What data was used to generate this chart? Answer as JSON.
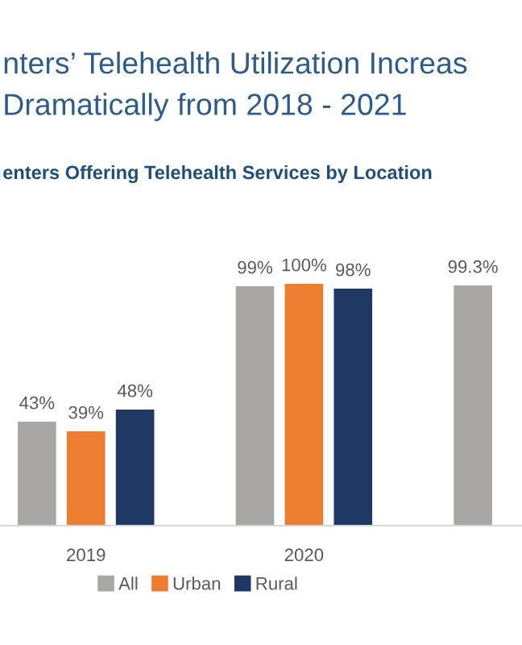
{
  "chart_data": {
    "type": "bar",
    "title": "nters’ Telehealth Utilization Increas\nDramatically from 2018 - 2021",
    "subtitle": "enters Offering Telehealth Services by Location",
    "categories": [
      "2019",
      "2020",
      null
    ],
    "series": [
      {
        "name": "All",
        "color": "#a9a6a6",
        "values": [
          43,
          99,
          99.3
        ],
        "value_labels": [
          "43%",
          "99%",
          "99.3%"
        ]
      },
      {
        "name": "Urban",
        "color": "#ed7d31",
        "values": [
          39,
          100,
          null
        ],
        "value_labels": [
          "39%",
          "100%",
          null
        ]
      },
      {
        "name": "Rural",
        "color": "#203864",
        "values": [
          48,
          98,
          null
        ],
        "value_labels": [
          "48%",
          "98%",
          null
        ]
      }
    ],
    "legend": "bottom",
    "grid": false
  }
}
